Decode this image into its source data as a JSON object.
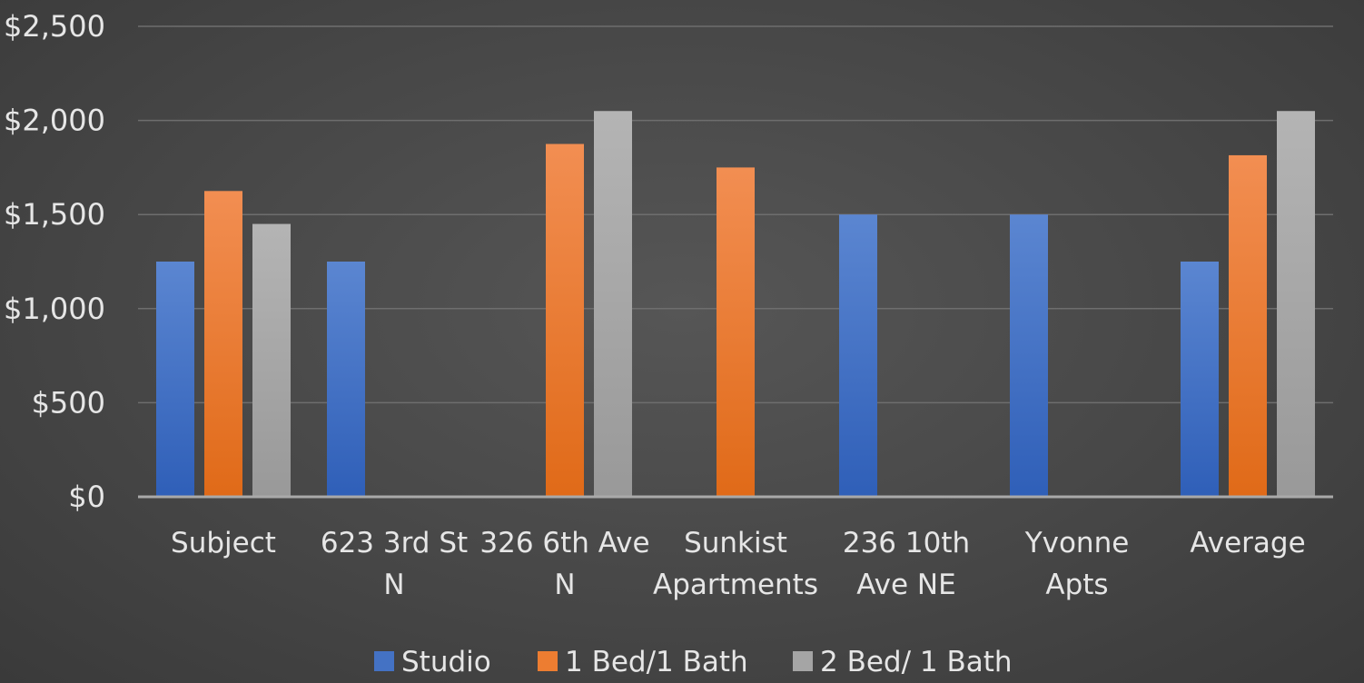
{
  "chart_data": {
    "type": "bar",
    "categories": [
      [
        "Subject"
      ],
      [
        "623 3rd St",
        "N"
      ],
      [
        "326 6th Ave",
        "N"
      ],
      [
        "Sunkist",
        "Apartments"
      ],
      [
        "236 10th",
        "Ave NE"
      ],
      [
        "Yvonne",
        "Apts"
      ],
      [
        "Average"
      ]
    ],
    "series": [
      {
        "name": "Studio",
        "color": "#4472c4",
        "values": [
          1250,
          1250,
          null,
          null,
          1500,
          1500,
          1250
        ]
      },
      {
        "name": "1 Bed/1 Bath",
        "color": "#ed7d31",
        "values": [
          1625,
          null,
          1875,
          1750,
          null,
          null,
          1815
        ]
      },
      {
        "name": "2 Bed/ 1 Bath",
        "color": "#a5a5a5",
        "values": [
          1450,
          null,
          2050,
          null,
          null,
          null,
          2050
        ]
      }
    ],
    "y_ticks": [
      "$0",
      "$500",
      "$1,000",
      "$1,500",
      "$2,000",
      "$2,500"
    ],
    "ylim": [
      0,
      2500
    ],
    "grid": true,
    "legend_position": "bottom"
  }
}
